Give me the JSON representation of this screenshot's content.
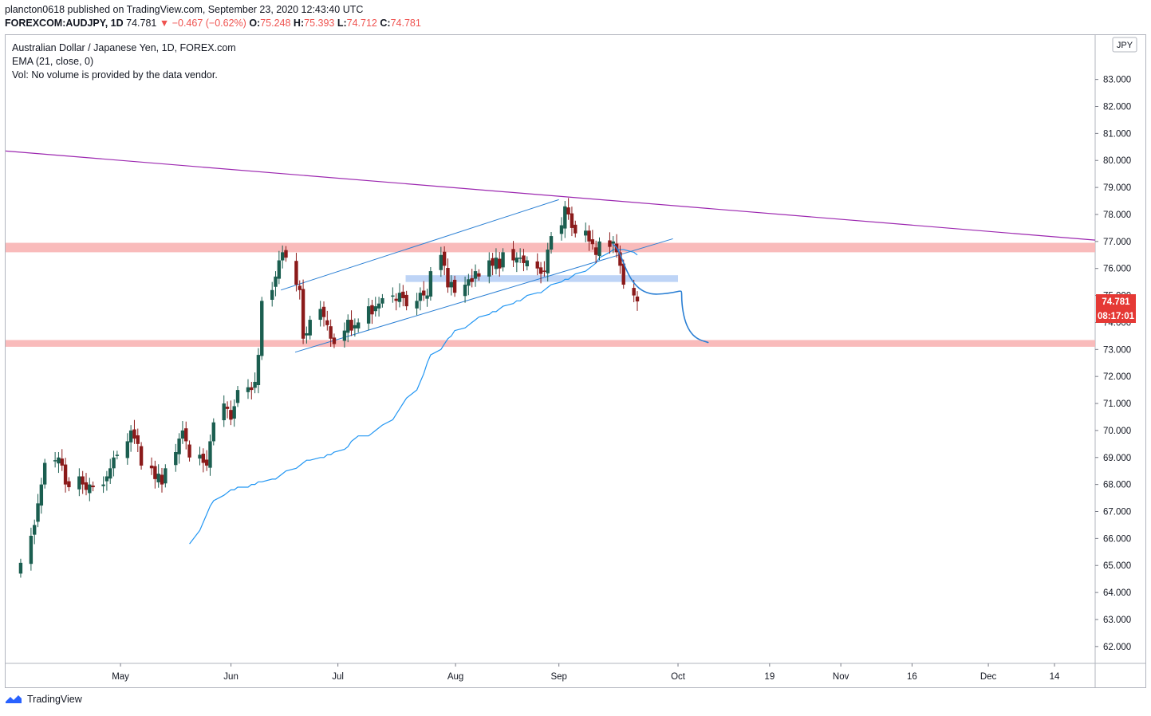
{
  "header": {
    "line1": "plancton0618 published on TradingView.com, September 23, 2020 12:43:40 UTC",
    "symbol": "FOREXCOM:AUDJPY, 1D",
    "last": "74.781",
    "change_arrow": "▼",
    "change": "−0.467 (−0.62%)",
    "o_label": "O:",
    "o": "75.248",
    "h_label": "H:",
    "h": "75.393",
    "l_label": "L:",
    "l": "74.712",
    "c_label": "C:",
    "c": "74.781"
  },
  "legend": {
    "title": "Australian Dollar / Japanese Yen, 1D, FOREX.com",
    "ema": "EMA (21, close, 0)",
    "vol": "Vol: No volume is provided by the data vendor."
  },
  "footer": {
    "brand": "TradingView"
  },
  "colors": {
    "up": "#26a69a",
    "up_body": "#1b5e50",
    "down": "#8b1a1a",
    "ema": "#2196f3",
    "resistance_zone": "#f8b4b4",
    "support_zone": "#b3cdf5",
    "trendline": "#9c27b0",
    "channel": "#2a7fd4",
    "price_label": "#e53935"
  },
  "chart_data": {
    "type": "candlestick",
    "title": "Australian Dollar / Japanese Yen, 1D, FOREX.com",
    "currency_label": "JPY",
    "last_price_label": "74.781",
    "countdown_label": "08:17:01",
    "ylim": [
      61.7,
      84.2
    ],
    "y_ticks": [
      "83.000",
      "82.000",
      "81.000",
      "80.000",
      "79.000",
      "78.000",
      "77.000",
      "76.000",
      "75.000",
      "74.000",
      "73.000",
      "72.000",
      "71.000",
      "70.000",
      "69.000",
      "68.000",
      "67.000",
      "66.000",
      "65.000",
      "64.000",
      "63.000",
      "62.000"
    ],
    "x_ticks": [
      {
        "label": "May",
        "date": "2020-05-01"
      },
      {
        "label": "Jun",
        "date": "2020-06-01"
      },
      {
        "label": "Jul",
        "date": "2020-07-01"
      },
      {
        "label": "Aug",
        "date": "2020-08-03"
      },
      {
        "label": "Sep",
        "date": "2020-09-01"
      },
      {
        "label": "Oct",
        "date": "2020-10-01"
      },
      {
        "label": "19",
        "date": "2020-10-19"
      },
      {
        "label": "Nov",
        "date": "2020-11-02"
      },
      {
        "label": "16",
        "date": "2020-11-16"
      },
      {
        "label": "Dec",
        "date": "2020-12-01"
      },
      {
        "label": "14",
        "date": "2020-12-14"
      }
    ],
    "close_series": [
      65.1,
      66.1,
      66.5,
      67.3,
      68.0,
      68.8,
      68.9,
      69.0,
      68.7,
      68.0,
      67.9,
      68.3,
      68.0,
      67.8,
      68.0,
      67.9,
      68.0,
      68.3,
      68.6,
      69.0,
      69.1,
      69.6,
      70.0,
      69.7,
      69.5,
      68.7,
      68.6,
      68.2,
      68.4,
      68.0,
      68.6,
      69.2,
      69.7,
      70.0,
      69.6,
      69.0,
      69.1,
      68.8,
      68.7,
      69.6,
      70.3,
      71.0,
      70.8,
      70.4,
      70.9,
      71.5,
      71.6,
      71.5,
      71.8,
      72.8,
      74.8,
      75.2,
      75.7,
      76.3,
      76.6,
      76.4,
      75.4,
      75.2,
      73.4,
      73.6,
      74.1,
      74.5,
      74.2,
      73.9,
      73.4,
      73.2,
      73.7,
      74.1,
      73.7,
      73.9,
      74.0,
      74.6,
      74.3,
      74.6,
      74.7,
      74.9,
      75.0,
      74.8,
      75.1,
      74.9,
      74.6,
      74.8,
      75.1,
      75.0,
      75.0,
      75.9,
      76.5,
      76.1,
      75.3,
      75.5,
      75.1,
      75.4,
      75.6,
      75.5,
      75.9,
      75.7,
      76.3,
      76.1,
      76.4,
      76.0,
      76.6,
      76.3,
      76.4,
      76.4,
      76.2,
      76.3,
      76.0,
      75.8,
      75.9,
      76.7,
      77.2,
      77.6,
      78.3,
      78.0,
      77.5,
      77.3,
      77.4,
      77.0,
      76.9,
      76.5,
      77.0,
      76.8,
      77.0,
      76.6,
      76.1,
      75.4,
      75.0,
      74.78
    ],
    "ema_series": [
      65.8,
      66.3,
      66.6,
      66.9,
      67.2,
      67.4,
      67.6,
      67.7,
      67.8,
      67.8,
      67.9,
      67.9,
      68.0,
      68.0,
      68.1,
      68.1,
      68.2,
      68.2,
      68.3,
      68.4,
      68.5,
      68.6,
      68.7,
      68.8,
      68.9,
      68.9,
      69.0,
      69.0,
      69.1,
      69.1,
      69.2,
      69.3,
      69.4,
      69.6,
      69.7,
      69.8,
      69.8,
      69.9,
      70.0,
      70.1,
      70.2,
      70.4,
      70.6,
      70.8,
      71.0,
      71.2,
      71.5,
      71.8,
      72.1,
      72.5,
      72.8,
      73.0,
      73.2,
      73.4,
      73.5,
      73.7,
      73.8,
      73.9,
      74.0,
      74.1,
      74.2,
      74.3,
      74.4,
      74.4,
      74.5,
      74.6,
      74.7,
      74.8,
      74.8,
      74.9,
      75.0,
      75.1,
      75.1,
      75.2,
      75.3,
      75.4,
      75.5,
      75.6,
      75.6,
      75.7,
      75.8,
      75.9,
      76.0,
      76.1,
      76.2,
      76.4,
      76.6,
      76.7,
      76.7,
      76.7,
      76.7,
      76.6,
      76.5
    ],
    "annotations": [
      {
        "type": "zone",
        "y": [
          76.6,
          76.95
        ],
        "label": ""
      },
      {
        "type": "zone",
        "y": [
          73.1,
          73.35
        ],
        "label": ""
      },
      {
        "type": "zone",
        "y": [
          75.5,
          75.75
        ],
        "label": ""
      },
      {
        "type": "trendline",
        "from": [
          0,
          80.35
        ],
        "to": [
          -1,
          77.05
        ]
      },
      {
        "type": "projection",
        "description": "drawn path toward 73.2"
      }
    ]
  }
}
